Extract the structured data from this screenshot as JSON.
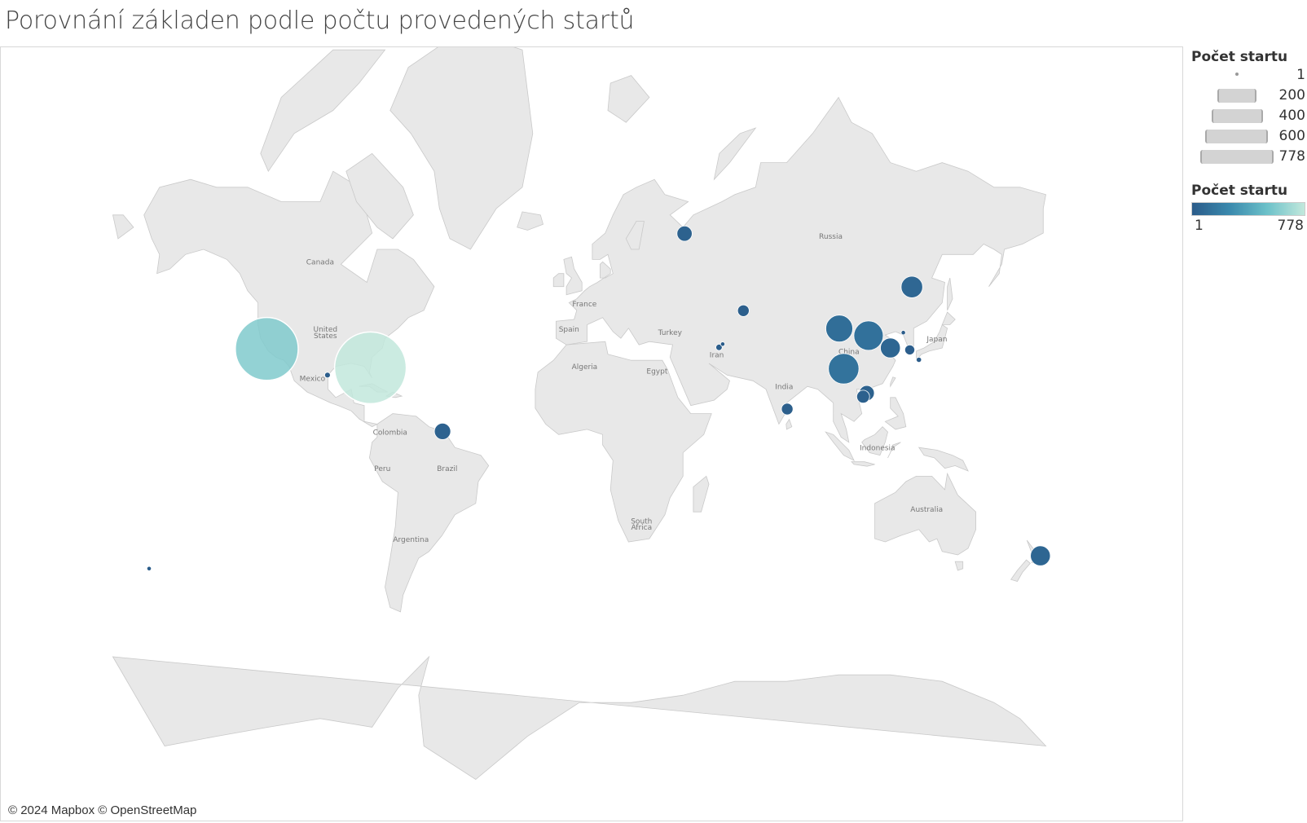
{
  "title": "Porovnání základen podle počtu provedených startů",
  "attribution": "© 2024 Mapbox © OpenStreetMap",
  "legend": {
    "size_title": "Počet startu",
    "size_entries": [
      {
        "label": "1",
        "value": 1
      },
      {
        "label": "200",
        "value": 200
      },
      {
        "label": "400",
        "value": 400
      },
      {
        "label": "600",
        "value": 600
      },
      {
        "label": "778",
        "value": 778
      }
    ],
    "color_title": "Počet startu",
    "color_min": "1",
    "color_max": "778",
    "color_low": "#2b5c8a",
    "color_high": "#c2e8dc"
  },
  "map_labels": [
    {
      "name": "Canada",
      "lon": -100,
      "lat": 57
    },
    {
      "name": "United",
      "lon": -98,
      "lat": 40
    },
    {
      "name": "States",
      "lon": -98,
      "lat": 38
    },
    {
      "name": "Mexico",
      "lon": -103,
      "lat": 24
    },
    {
      "name": "Colombia",
      "lon": -73,
      "lat": 4
    },
    {
      "name": "Brazil",
      "lon": -51,
      "lat": -10
    },
    {
      "name": "Peru",
      "lon": -76,
      "lat": -10
    },
    {
      "name": "Argentina",
      "lon": -65,
      "lat": -35
    },
    {
      "name": "France",
      "lon": 2,
      "lat": 47
    },
    {
      "name": "Spain",
      "lon": -4,
      "lat": 40
    },
    {
      "name": "Algeria",
      "lon": 2,
      "lat": 28
    },
    {
      "name": "Egypt",
      "lon": 30,
      "lat": 26.5
    },
    {
      "name": "Turkey",
      "lon": 35,
      "lat": 39
    },
    {
      "name": "Iran",
      "lon": 53,
      "lat": 32
    },
    {
      "name": "Russia",
      "lon": 97,
      "lat": 62
    },
    {
      "name": "China",
      "lon": 104,
      "lat": 33
    },
    {
      "name": "India",
      "lon": 79,
      "lat": 21
    },
    {
      "name": "Japan",
      "lon": 138,
      "lat": 37
    },
    {
      "name": "Indonesia",
      "lon": 115,
      "lat": -2
    },
    {
      "name": "Australia",
      "lon": 134,
      "lat": -25
    },
    {
      "name": "South",
      "lon": 24,
      "lat": -29
    },
    {
      "name": "Africa",
      "lon": 24,
      "lat": -31
    }
  ],
  "chart_data": {
    "type": "bubble-map",
    "size_measure": "Počet startu",
    "color_measure": "Počet startu",
    "value_range": [
      1,
      778
    ],
    "points": [
      {
        "lon": -120.6,
        "lat": 34.7,
        "value": 600
      },
      {
        "lon": -80.6,
        "lat": 28.5,
        "value": 778
      },
      {
        "lon": -97.2,
        "lat": 26.0,
        "value": 5
      },
      {
        "lon": -52.8,
        "lat": 5.2,
        "value": 40
      },
      {
        "lon": 40.6,
        "lat": 62.9,
        "value": 35
      },
      {
        "lon": 63.3,
        "lat": 45.9,
        "value": 20
      },
      {
        "lon": 53.9,
        "lat": 35.2,
        "value": 6
      },
      {
        "lon": 55.3,
        "lat": 36.2,
        "value": 3
      },
      {
        "lon": 100.3,
        "lat": 40.9,
        "value": 110
      },
      {
        "lon": 111.6,
        "lat": 38.8,
        "value": 130
      },
      {
        "lon": 120.0,
        "lat": 35.0,
        "value": 60
      },
      {
        "lon": 102.0,
        "lat": 28.2,
        "value": 140
      },
      {
        "lon": 110.9,
        "lat": 19.6,
        "value": 35
      },
      {
        "lon": 109.5,
        "lat": 18.3,
        "value": 25
      },
      {
        "lon": 128.3,
        "lat": 51.9,
        "value": 70
      },
      {
        "lon": 127.5,
        "lat": 34.4,
        "value": 15
      },
      {
        "lon": 131.0,
        "lat": 31.2,
        "value": 4
      },
      {
        "lon": 125.0,
        "lat": 39.7,
        "value": 3
      },
      {
        "lon": 80.2,
        "lat": 13.7,
        "value": 20
      },
      {
        "lon": 177.9,
        "lat": -39.3,
        "value": 60
      },
      {
        "lon": -166.0,
        "lat": -43.0,
        "value": 3
      }
    ]
  }
}
